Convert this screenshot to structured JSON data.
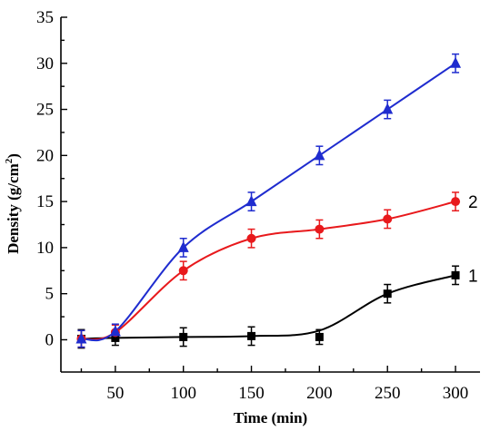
{
  "chart_data": {
    "type": "line",
    "xlabel": "Time (min)",
    "ylabel": "Density (g/cm",
    "ylabel_sup": "2",
    "ylabel_end": ")",
    "xlim": [
      10,
      318
    ],
    "ylim": [
      -3.5,
      35
    ],
    "xticks_major": [
      50,
      100,
      150,
      200,
      250,
      300
    ],
    "yticks_major": [
      0,
      5,
      10,
      15,
      20,
      25,
      30,
      35
    ],
    "x": [
      25,
      50,
      100,
      150,
      200,
      250,
      300
    ],
    "series": [
      {
        "name": "1",
        "color": "#000000",
        "marker": "square",
        "values": [
          0.1,
          0.2,
          0.3,
          0.4,
          0.3,
          5.0,
          7.0
        ],
        "errors": [
          1.0,
          0.8,
          1.0,
          1.0,
          0.8,
          1.0,
          1.0
        ],
        "curve": [
          0.1,
          0.2,
          0.3,
          0.4,
          1.0,
          5.0,
          7.0
        ]
      },
      {
        "name": "2",
        "color": "#e8191c",
        "marker": "circle",
        "values": [
          0.1,
          0.8,
          7.5,
          11.0,
          12.0,
          13.1,
          15.0
        ],
        "errors": [
          0.9,
          0.8,
          1.0,
          1.0,
          1.0,
          1.0,
          1.0
        ],
        "curve": [
          0.1,
          0.8,
          7.5,
          11.0,
          12.0,
          13.1,
          15.0
        ]
      },
      {
        "name": "",
        "color": "#1f2ccf",
        "marker": "triangle",
        "values": [
          0.1,
          0.9,
          10.0,
          15.0,
          20.0,
          25.0,
          30.0
        ],
        "errors": [
          0.9,
          0.8,
          1.0,
          1.0,
          1.0,
          1.0,
          1.0
        ],
        "curve": [
          0.1,
          0.9,
          10.0,
          15.0,
          20.0,
          25.0,
          30.0
        ]
      }
    ],
    "grid": false,
    "legend": "none"
  }
}
